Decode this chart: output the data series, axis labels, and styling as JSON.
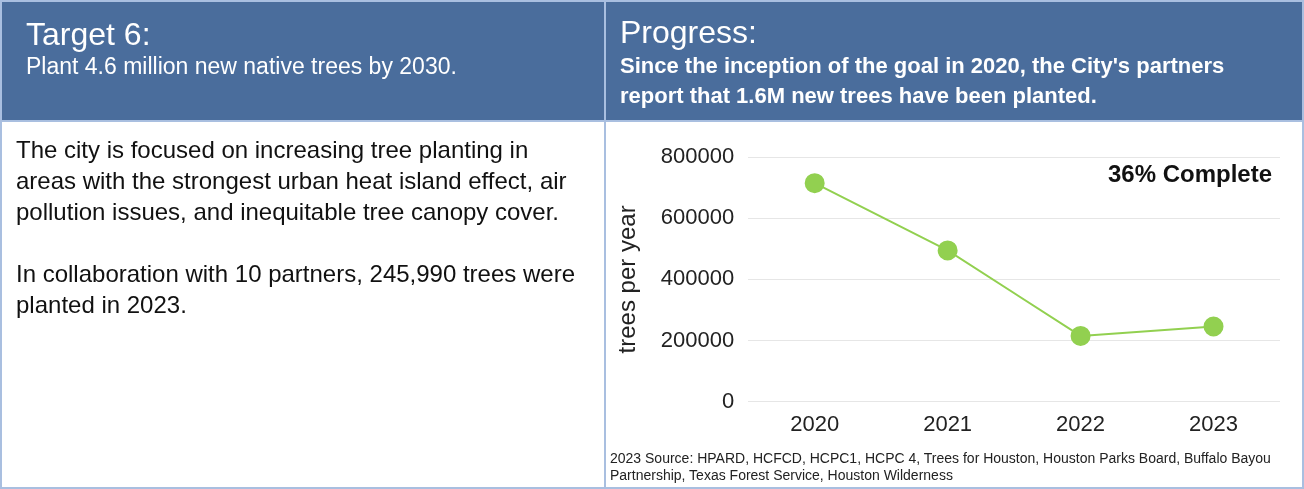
{
  "chart_data": {
    "type": "line",
    "title": "Progress:",
    "subtitle": "Since the inception of the goal in 2020, the City's partners report that 1.6M new trees have been planted.",
    "ylabel": "trees per year",
    "categories": [
      "2020",
      "2021",
      "2022",
      "2023"
    ],
    "series": [
      {
        "color": "#92d050",
        "values": [
          715000,
          495000,
          215000,
          246000
        ]
      }
    ],
    "ylim": [
      0,
      800000
    ],
    "yticks": [
      0,
      200000,
      400000,
      600000,
      800000
    ],
    "grid": "y",
    "legend": false,
    "marker": "circle",
    "line_style": "solid",
    "annotations": [
      "Target 6:",
      "Plant 4.6 million new native trees by 2030.",
      "The city is focused on increasing tree planting in areas with the strongest urban heat island effect, air pollution issues, and inequitable tree canopy cover.",
      "In collaboration with 10 partners, 245,990 trees were planted in 2023.",
      "36% Complete",
      "2023 Source: HPARD, HCFCD, HCPC1, HCPC 4, Trees for Houston, Houston Parks Board, Buffalo Bayou Partnership, Texas Forest Service, Houston Wilderness"
    ]
  }
}
